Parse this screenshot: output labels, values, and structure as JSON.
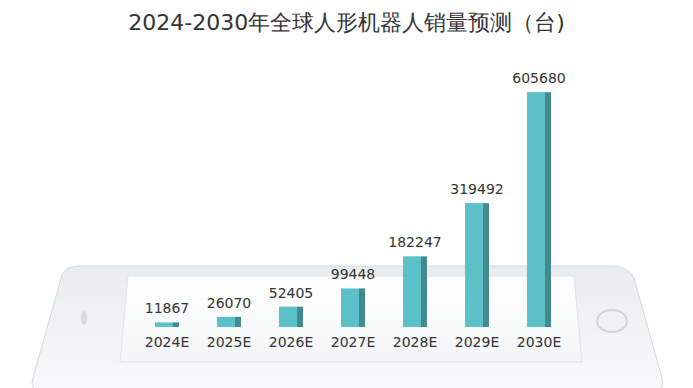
{
  "chart_data": {
    "type": "bar",
    "title": "2024-2030年全球人形机器人销量预测（台)",
    "categories": [
      "2024E",
      "2025E",
      "2026E",
      "2027E",
      "2028E",
      "2029E",
      "2030E"
    ],
    "values": [
      11867,
      26070,
      52405,
      99448,
      182247,
      319492,
      605680
    ],
    "color": "#5bc0c8",
    "ylim": [
      0,
      650000
    ],
    "data_labels": true,
    "tick_labels": "x"
  }
}
